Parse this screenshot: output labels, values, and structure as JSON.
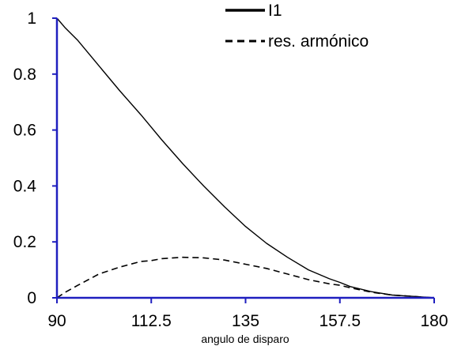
{
  "chart_data": {
    "type": "line",
    "title": "",
    "xlabel": "angulo de disparo",
    "ylabel": "",
    "xlim": [
      90,
      180
    ],
    "ylim": [
      0,
      1
    ],
    "x_ticks": [
      "90",
      "112.5",
      "135",
      "157.5",
      "180"
    ],
    "y_ticks": [
      "0",
      "0.2",
      "0.4",
      "0.6",
      "0.8",
      "1"
    ],
    "grid": false,
    "legend_position": "top-right",
    "axis_color": "#1f1fbf",
    "series": [
      {
        "name": "I1",
        "style": "solid",
        "color": "#000000",
        "x": [
          90,
          92,
          95,
          100,
          105,
          110,
          112.5,
          115,
          120,
          125,
          130,
          135,
          140,
          145,
          150,
          155,
          157.5,
          160,
          165,
          170,
          175,
          180
        ],
        "y": [
          1.0,
          0.965,
          0.92,
          0.83,
          0.74,
          0.655,
          0.61,
          0.565,
          0.48,
          0.4,
          0.325,
          0.255,
          0.195,
          0.145,
          0.1,
          0.068,
          0.055,
          0.04,
          0.022,
          0.01,
          0.005,
          0.0
        ]
      },
      {
        "name": "res. armónico",
        "style": "dashed",
        "color": "#000000",
        "x": [
          90,
          92,
          95,
          100,
          105,
          110,
          112.5,
          115,
          120,
          125,
          130,
          135,
          140,
          145,
          150,
          155,
          157.5,
          160,
          165,
          170,
          175,
          180
        ],
        "y": [
          0.0,
          0.02,
          0.045,
          0.085,
          0.11,
          0.13,
          0.133,
          0.14,
          0.145,
          0.143,
          0.135,
          0.12,
          0.105,
          0.085,
          0.065,
          0.05,
          0.045,
          0.036,
          0.02,
          0.01,
          0.005,
          0.0
        ]
      }
    ]
  }
}
